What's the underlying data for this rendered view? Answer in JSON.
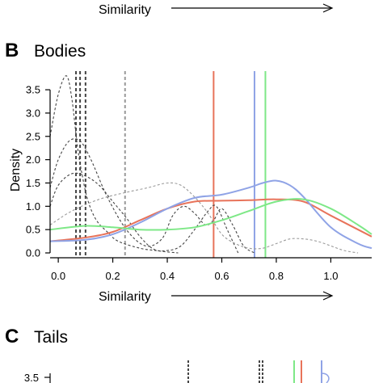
{
  "colors": {
    "red": "#e8735a",
    "blue": "#8fa3e6",
    "green": "#7ee887",
    "dark_dashed": "#444444",
    "grey_dashed": "#9a9a9a"
  },
  "top_strip": {
    "xlabel": "Similarity"
  },
  "panel_b": {
    "letter": "B",
    "title": "Bodies"
  },
  "panel_c": {
    "letter": "C",
    "title": "Tails",
    "visible_ytick": "3.5"
  },
  "chart_data": [
    {
      "panel": "B",
      "type": "line",
      "title": "Bodies",
      "xlabel": "Similarity",
      "ylabel": "Density",
      "xlim": [
        -0.03,
        1.15
      ],
      "ylim": [
        0,
        3.9
      ],
      "xticks": [
        "0.0",
        "0.2",
        "0.4",
        "0.6",
        "0.8",
        "1.0"
      ],
      "xtick_values": [
        0,
        0.2,
        0.4,
        0.6,
        0.8,
        1.0
      ],
      "yticks": [
        "0.0",
        "0.5",
        "1.0",
        "1.5",
        "2.0",
        "2.5",
        "3.0",
        "3.5"
      ],
      "ytick_values": [
        0,
        0.5,
        1.0,
        1.5,
        2.0,
        2.5,
        3.0,
        3.5
      ],
      "grid": false,
      "series": [
        {
          "color": "red",
          "style": "solid",
          "vline": 0.57,
          "x": [
            -0.03,
            0.1,
            0.2,
            0.3,
            0.4,
            0.5,
            0.6,
            0.7,
            0.8,
            0.9,
            1.0,
            1.15
          ],
          "y": [
            0.25,
            0.33,
            0.45,
            0.7,
            0.95,
            1.1,
            1.12,
            1.13,
            1.15,
            1.1,
            0.8,
            0.35
          ]
        },
        {
          "color": "blue",
          "style": "solid",
          "vline": 0.72,
          "x": [
            -0.03,
            0.1,
            0.2,
            0.3,
            0.4,
            0.5,
            0.6,
            0.7,
            0.75,
            0.8,
            0.85,
            0.9,
            1.0,
            1.1,
            1.15
          ],
          "y": [
            0.25,
            0.28,
            0.4,
            0.65,
            0.95,
            1.18,
            1.25,
            1.4,
            1.5,
            1.55,
            1.45,
            1.2,
            0.55,
            0.2,
            0.1
          ]
        },
        {
          "color": "green",
          "style": "solid",
          "vline": 0.76,
          "x": [
            -0.03,
            0.1,
            0.2,
            0.3,
            0.4,
            0.5,
            0.6,
            0.7,
            0.8,
            0.9,
            1.0,
            1.1,
            1.15
          ],
          "y": [
            0.5,
            0.58,
            0.55,
            0.5,
            0.5,
            0.55,
            0.7,
            0.9,
            1.1,
            1.15,
            0.95,
            0.6,
            0.4
          ]
        },
        {
          "color": "dark_dashed",
          "style": "dashed",
          "vline": 0.065,
          "x": [
            -0.03,
            0.0,
            0.03,
            0.05,
            0.07,
            0.09,
            0.11,
            0.14,
            0.18,
            0.22,
            0.3,
            0.36,
            0.4,
            0.44
          ],
          "y": [
            2.5,
            3.4,
            3.8,
            3.3,
            2.3,
            1.6,
            1.1,
            0.7,
            0.45,
            0.25,
            0.1,
            0.05,
            0.02,
            0.0
          ]
        },
        {
          "color": "dark_dashed",
          "style": "dashed",
          "vline": 0.1,
          "x": [
            -0.03,
            0.0,
            0.04,
            0.08,
            0.12,
            0.18,
            0.25,
            0.32,
            0.38,
            0.42,
            0.46,
            0.5,
            0.54,
            0.57,
            0.6,
            0.64,
            0.68,
            0.72
          ],
          "y": [
            1.4,
            2.0,
            2.4,
            2.4,
            2.0,
            1.2,
            0.5,
            0.15,
            0.3,
            0.8,
            1.0,
            0.85,
            0.6,
            0.7,
            0.95,
            0.6,
            0.15,
            0.0
          ]
        },
        {
          "color": "dark_dashed",
          "style": "dashed",
          "vline": 0.08,
          "x": [
            -0.03,
            0.0,
            0.05,
            0.1,
            0.15,
            0.2,
            0.25,
            0.3,
            0.35,
            0.4,
            0.45,
            0.5,
            0.55,
            0.58,
            0.62,
            0.66
          ],
          "y": [
            1.0,
            1.45,
            1.7,
            1.65,
            1.45,
            1.1,
            0.75,
            0.35,
            0.08,
            0.05,
            0.15,
            0.5,
            0.9,
            1.0,
            0.5,
            0.0
          ]
        },
        {
          "color": "grey_dashed",
          "style": "dashed",
          "vline": 0.245,
          "x": [
            -0.03,
            0.05,
            0.15,
            0.25,
            0.33,
            0.4,
            0.45,
            0.5,
            0.55,
            0.6,
            0.65,
            0.7,
            0.75,
            0.8,
            0.85,
            0.9,
            0.95,
            1.0,
            1.05,
            1.1
          ],
          "y": [
            0.6,
            0.9,
            1.15,
            1.3,
            1.4,
            1.5,
            1.45,
            1.2,
            0.85,
            0.4,
            0.2,
            0.1,
            0.1,
            0.2,
            0.3,
            0.3,
            0.25,
            0.15,
            0.05,
            0.0
          ]
        }
      ]
    }
  ]
}
